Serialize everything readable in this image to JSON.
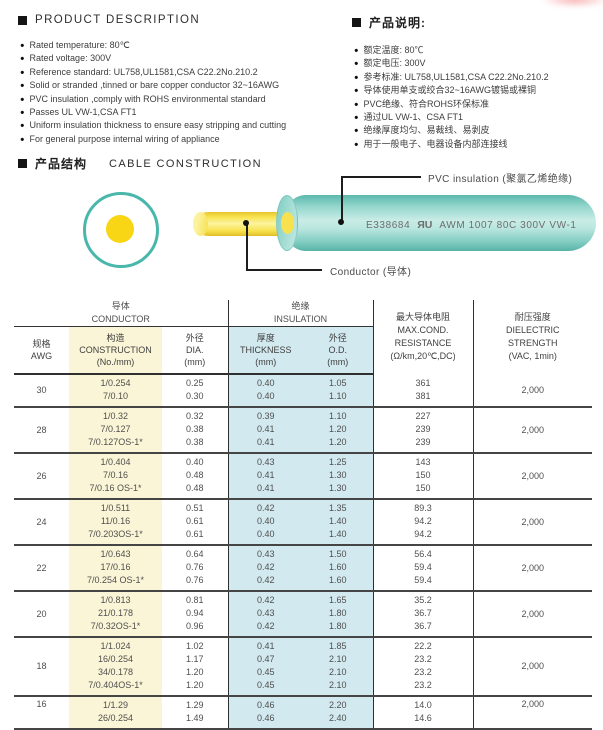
{
  "icons": {
    "bullet": "●"
  },
  "product_description": {
    "title": "PRODUCT DESCRIPTION",
    "items": [
      "Rated temperature: 80℃",
      "Rated voltage: 300V",
      "Reference standard: UL758,UL1581,CSA C22.2No.210.2",
      "Solid or stranded ,tinned or bare copper conductor 32~16AWG",
      "PVC insulation ,comply with ROHS environmental standard",
      "Passes UL VW-1,CSA FT1",
      "Uniform insulation thickness to ensure easy stripping and cutting",
      "For general purpose internal wiring of appliance"
    ]
  },
  "product_notes": {
    "title": "产品说明:",
    "items": [
      "额定温度: 80℃",
      "额定电压: 300V",
      "参考标准: UL758,UL1581,CSA C22.2No.210.2",
      "导体使用单支或绞合32~16AWG镀锡或裸铜",
      "PVC绝缘、符合ROHS环保标准",
      "通过UL VW-1、CSA FT1",
      "绝缘厚度均匀、易裁线、易剥皮",
      "用于一般电子、电器设备内部连接线"
    ]
  },
  "construction": {
    "title_zh": "产品结构",
    "title_en": "CABLE CONSTRUCTION",
    "cable_print_left": "E338684",
    "cable_mark": "ЯU",
    "cable_print_right": "AWM 1007 80C 300V VW-1",
    "label_insulation": "PVC insulation (聚氯乙烯绝缘)",
    "label_conductor": "Conductor (导体)",
    "colors": {
      "insulation_teal": "#49b7ab",
      "conductor_yellow": "#f8d515"
    }
  },
  "table": {
    "header": {
      "conductor_group": [
        "导体",
        "CONDUCTOR"
      ],
      "insulation_group": [
        "绝缘",
        "INSULATION"
      ],
      "awg": [
        "规格",
        "AWG"
      ],
      "construction": [
        "构造",
        "CONSTRUCTION",
        "(No./mm)"
      ],
      "dia": [
        "外径",
        "DIA.",
        "(mm)"
      ],
      "thickness": [
        "厚度",
        "THICKNESS",
        "(mm)"
      ],
      "od": [
        "外径",
        "O.D.",
        "(mm)"
      ],
      "resistance": [
        "最大导体电阻",
        "MAX.COND.",
        "RESISTANCE",
        "(Ω/km,20℃,DC)"
      ],
      "dielectric": [
        "耐压强度",
        "DIELECTRIC",
        "STRENGTH",
        "(VAC, 1min)"
      ]
    },
    "highlight_colors": {
      "construction_col": "#faf5d6",
      "insulation_cols": "#d2e9ef"
    },
    "rows": [
      {
        "awg": "30",
        "construction": [
          "1/0.254",
          "7/0.10"
        ],
        "dia": [
          "0.25",
          "0.30"
        ],
        "thickness": [
          "0.40",
          "0.40"
        ],
        "od": [
          "1.05",
          "1.10"
        ],
        "resistance": [
          "361",
          "381"
        ],
        "dielectric": "2,000"
      },
      {
        "awg": "28",
        "construction": [
          "1/0.32",
          "7/0.127",
          "7/0.127OS-1*"
        ],
        "dia": [
          "0.32",
          "0.38",
          "0.38"
        ],
        "thickness": [
          "0.39",
          "0.41",
          "0.41"
        ],
        "od": [
          "1.10",
          "1.20",
          "1.20"
        ],
        "resistance": [
          "227",
          "239",
          "239"
        ],
        "dielectric": "2,000"
      },
      {
        "awg": "26",
        "construction": [
          "1/0.404",
          "7/0.16",
          "7/0.16 OS-1*"
        ],
        "dia": [
          "0.40",
          "0.48",
          "0.48"
        ],
        "thickness": [
          "0.43",
          "0.41",
          "0.41"
        ],
        "od": [
          "1.25",
          "1.30",
          "1.30"
        ],
        "resistance": [
          "143",
          "150",
          "150"
        ],
        "dielectric": "2,000"
      },
      {
        "awg": "24",
        "construction": [
          "1/0.511",
          "11/0.16",
          "7/0.203OS-1*"
        ],
        "dia": [
          "0.51",
          "0.61",
          "0.61"
        ],
        "thickness": [
          "0.42",
          "0.40",
          "0.40"
        ],
        "od": [
          "1.35",
          "1.40",
          "1.40"
        ],
        "resistance": [
          "89.3",
          "94.2",
          "94.2"
        ],
        "dielectric": "2,000"
      },
      {
        "awg": "22",
        "construction": [
          "1/0.643",
          "17/0.16",
          "7/0.254 OS-1*"
        ],
        "dia": [
          "0.64",
          "0.76",
          "0.76"
        ],
        "thickness": [
          "0.43",
          "0.42",
          "0.42"
        ],
        "od": [
          "1.50",
          "1.60",
          "1.60"
        ],
        "resistance": [
          "56.4",
          "59.4",
          "59.4"
        ],
        "dielectric": "2,000"
      },
      {
        "awg": "20",
        "construction": [
          "1/0.813",
          "21/0.178",
          "7/0.32OS-1*"
        ],
        "dia": [
          "0.81",
          "0.94",
          "0.96"
        ],
        "thickness": [
          "0.42",
          "0.43",
          "0.42"
        ],
        "od": [
          "1.65",
          "1.80",
          "1.80"
        ],
        "resistance": [
          "35.2",
          "36.7",
          "36.7"
        ],
        "dielectric": "2,000"
      },
      {
        "awg": "18",
        "construction": [
          "1/1.024",
          "16/0.254",
          "34/0.178",
          "7/0.404OS-1*"
        ],
        "dia": [
          "1.02",
          "1.17",
          "1.20",
          "1.20"
        ],
        "thickness": [
          "0.41",
          "0.47",
          "0.45",
          "0.45"
        ],
        "od": [
          "1.85",
          "2.10",
          "2.10",
          "2.10"
        ],
        "resistance": [
          "22.2",
          "23.2",
          "23.2",
          "23.2"
        ],
        "dielectric": "2,000"
      },
      {
        "awg": "16",
        "construction": [
          "1/1.29",
          "26/0.254"
        ],
        "dia": [
          "1.29",
          "1.49"
        ],
        "thickness": [
          "0.46",
          "0.46"
        ],
        "od": [
          "2.20",
          "2.40"
        ],
        "resistance": [
          "14.0",
          "14.6"
        ],
        "dielectric": "2,000",
        "top_align": true
      }
    ]
  }
}
